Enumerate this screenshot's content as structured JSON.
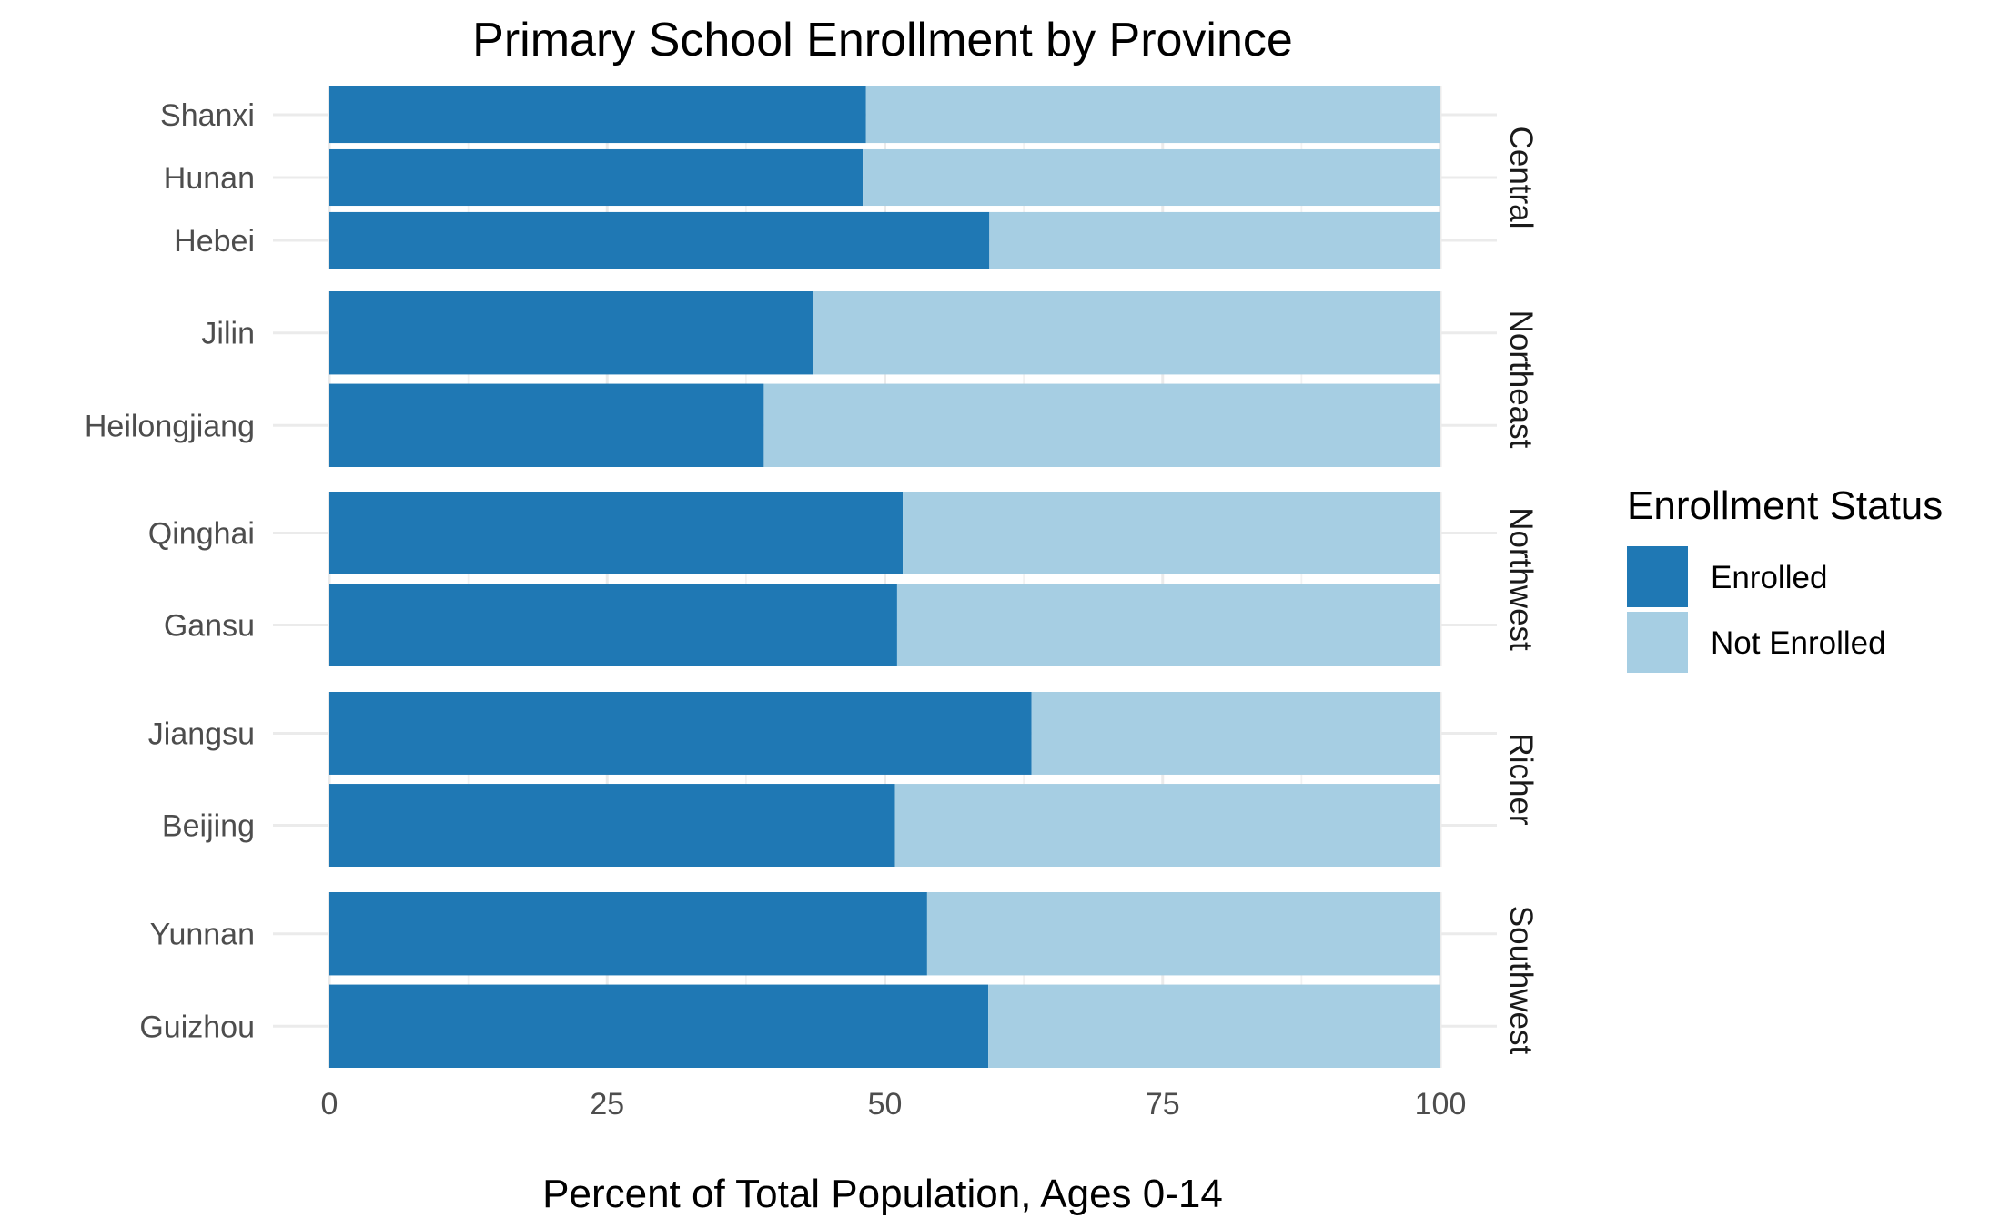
{
  "chart_data": {
    "type": "bar",
    "orientation": "horizontal",
    "stacked": true,
    "title": "Primary School Enrollment by Province",
    "xlabel": "Percent of Total Population, Ages 0-14",
    "ylabel": "",
    "xlim": [
      0,
      100
    ],
    "x_ticks": [
      0,
      25,
      50,
      75,
      100
    ],
    "grid": true,
    "legend": {
      "title": "Enrollment Status",
      "position": "right",
      "entries": [
        {
          "name": "Enrolled",
          "color": "#1f78b4"
        },
        {
          "name": "Not Enrolled",
          "color": "#a6cee3"
        }
      ]
    },
    "facets": [
      {
        "name": "Central",
        "provinces": [
          {
            "name": "Shanxi",
            "enrolled": 48.3,
            "not_enrolled": 51.7
          },
          {
            "name": "Hunan",
            "enrolled": 48.0,
            "not_enrolled": 52.0
          },
          {
            "name": "Hebei",
            "enrolled": 59.4,
            "not_enrolled": 40.6
          }
        ]
      },
      {
        "name": "Northeast",
        "provinces": [
          {
            "name": "Jilin",
            "enrolled": 43.5,
            "not_enrolled": 56.5
          },
          {
            "name": "Heilongjiang",
            "enrolled": 39.1,
            "not_enrolled": 60.9
          }
        ]
      },
      {
        "name": "Northwest",
        "provinces": [
          {
            "name": "Qinghai",
            "enrolled": 51.6,
            "not_enrolled": 48.4
          },
          {
            "name": "Gansu",
            "enrolled": 51.1,
            "not_enrolled": 48.9
          }
        ]
      },
      {
        "name": "Richer",
        "provinces": [
          {
            "name": "Jiangsu",
            "enrolled": 63.2,
            "not_enrolled": 36.8
          },
          {
            "name": "Beijing",
            "enrolled": 50.9,
            "not_enrolled": 49.1
          }
        ]
      },
      {
        "name": "Southwest",
        "provinces": [
          {
            "name": "Yunnan",
            "enrolled": 53.8,
            "not_enrolled": 46.2
          },
          {
            "name": "Guizhou",
            "enrolled": 59.3,
            "not_enrolled": 40.7
          }
        ]
      }
    ]
  }
}
